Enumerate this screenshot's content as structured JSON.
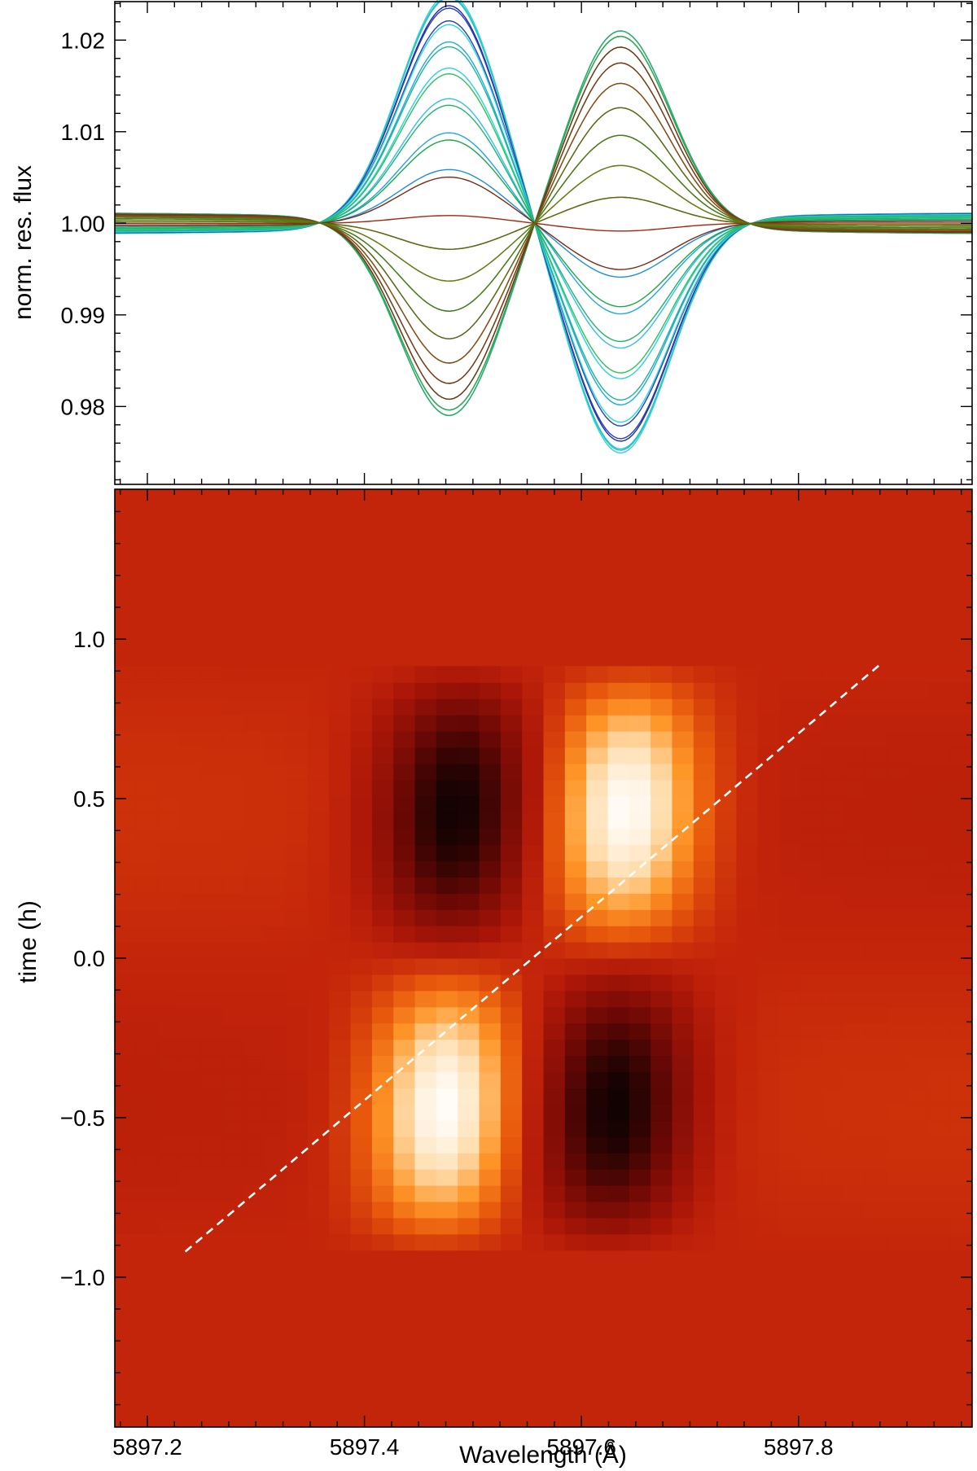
{
  "chart_data": [
    {
      "type": "line",
      "panel": "top",
      "title": "",
      "xlabel": "",
      "ylabel": "norm. res. flux",
      "xlim": [
        5897.17,
        5897.96
      ],
      "ylim": [
        0.9715,
        1.0242
      ],
      "xticks": [
        5897.2,
        5897.4,
        5897.6,
        5897.8
      ],
      "yticks": [
        0.98,
        0.99,
        1.0,
        1.01,
        1.02
      ],
      "ytick_labels": [
        "0.98",
        "0.99",
        "1.00",
        "1.01",
        "1.02"
      ],
      "grid": false,
      "legend": "none",
      "description_of_series": "~36 residual-flux profiles over the transit; each is a two-Gaussian feature whose amplitude follows the time of exposure",
      "profile_model": {
        "center_blue_feature": 5897.478,
        "center_red_feature": 5897.636,
        "sigma": 0.046,
        "peak_amplitude_blue_feature": 0.0255,
        "peak_amplitude_red_feature": 0.0215
      },
      "series_times_h": [
        -0.86,
        -0.81,
        -0.76,
        -0.71,
        -0.66,
        -0.61,
        -0.56,
        -0.51,
        -0.46,
        -0.41,
        -0.36,
        -0.31,
        -0.26,
        -0.21,
        -0.16,
        -0.11,
        -0.06,
        -0.01,
        0.04,
        0.09,
        0.14,
        0.19,
        0.24,
        0.29,
        0.34,
        0.39,
        0.44,
        0.49,
        0.54,
        0.59,
        0.64,
        0.69,
        0.74,
        0.79,
        0.84,
        0.89
      ],
      "series_colors": [
        "#1e90d8",
        "#22a6e2",
        "#33bfe8",
        "#29d3dc",
        "#1baed6",
        "#2a3fb4",
        "#1a30a0",
        "#30c0d6",
        "#2dd6d0",
        "#26c4c4",
        "#2f3db0",
        "#21d9d9",
        "#1fb39a",
        "#2ec25a",
        "#21b56a",
        "#1aa84a",
        "#7a2a18",
        "#a02810",
        "#8c3a1a",
        "#3aa83a",
        "#2d9a2d",
        "#4a8a1a",
        "#5a7a10",
        "#6a6a12",
        "#5a4a18",
        "#4e6a14",
        "#3f8f2f",
        "#20b070",
        "#2aaa5a",
        "#6b3a1a",
        "#7a3a18",
        "#8a4a14",
        "#5a6a18",
        "#4a7a18",
        "#6a7a10",
        "#5b6b0d"
      ]
    },
    {
      "type": "heatmap",
      "panel": "bottom",
      "title": "",
      "xlabel": "Wavelength (Å)",
      "ylabel": "time (h)",
      "xlim": [
        5897.17,
        5897.96
      ],
      "ylim": [
        -1.47,
        1.47
      ],
      "xticks": [
        5897.2,
        5897.4,
        5897.6,
        5897.8
      ],
      "xtick_labels": [
        "5897.2",
        "5897.4",
        "5897.6",
        "5897.8"
      ],
      "yticks": [
        -1.0,
        -0.5,
        0.0,
        0.5,
        1.0
      ],
      "ytick_labels": [
        "−1.0",
        "−0.5",
        "0.0",
        "0.5",
        "1.0"
      ],
      "colormap": "dark red (absorption) → red → orange → white (emission)",
      "time_range_h": [
        -0.89,
        0.89
      ],
      "n_time_rows": 36,
      "n_wavelength_columns": 40,
      "features": [
        {
          "kind": "bright",
          "wavelength": 5897.49,
          "time_h": -0.38
        },
        {
          "kind": "dark",
          "wavelength": 5897.64,
          "time_h": -0.52
        },
        {
          "kind": "bright",
          "wavelength": 5897.64,
          "time_h": 0.41
        },
        {
          "kind": "dark",
          "wavelength": 5897.48,
          "time_h": 0.53
        }
      ],
      "overlay_line": {
        "style": "white dashed",
        "x": [
          5897.235,
          5897.875
        ],
        "y": [
          -0.92,
          0.92
        ]
      }
    }
  ],
  "colors": {
    "heatmap_background": "#c3250a",
    "dashed_line": "#ffffff",
    "frame": "#000000"
  }
}
